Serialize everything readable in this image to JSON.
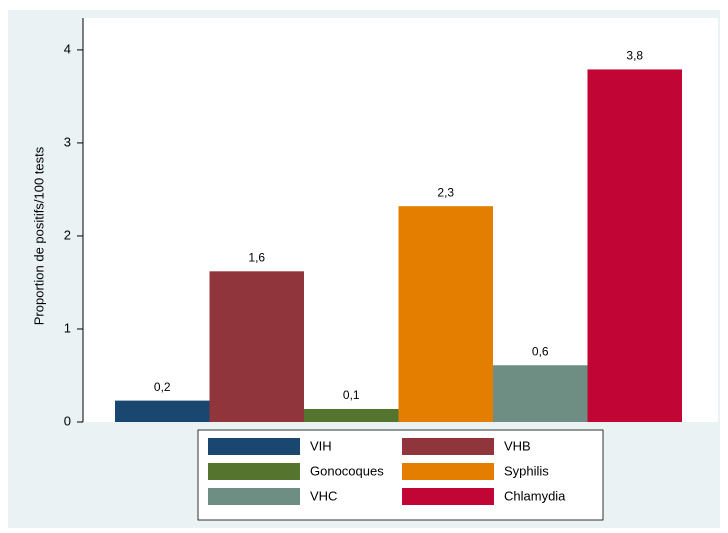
{
  "chart_data": {
    "type": "bar",
    "y_label": "Proportion de positifs/100 tests",
    "categories": [
      "VIH",
      "VHB",
      "Gonocoques",
      "Syphilis",
      "VHC",
      "Chlamydia"
    ],
    "values": [
      0.23,
      1.62,
      0.14,
      2.32,
      0.61,
      3.79
    ],
    "value_labels": [
      "0,2",
      "1,6",
      "0,1",
      "2,3",
      "0,6",
      "3,8"
    ],
    "colors": [
      "#1a476f",
      "#90353b",
      "#55752f",
      "#e37e00",
      "#6e8e84",
      "#c10534"
    ],
    "ylim": [
      0,
      4.3
    ],
    "yticks": [
      0,
      1,
      2,
      3,
      4
    ],
    "grid": false
  }
}
